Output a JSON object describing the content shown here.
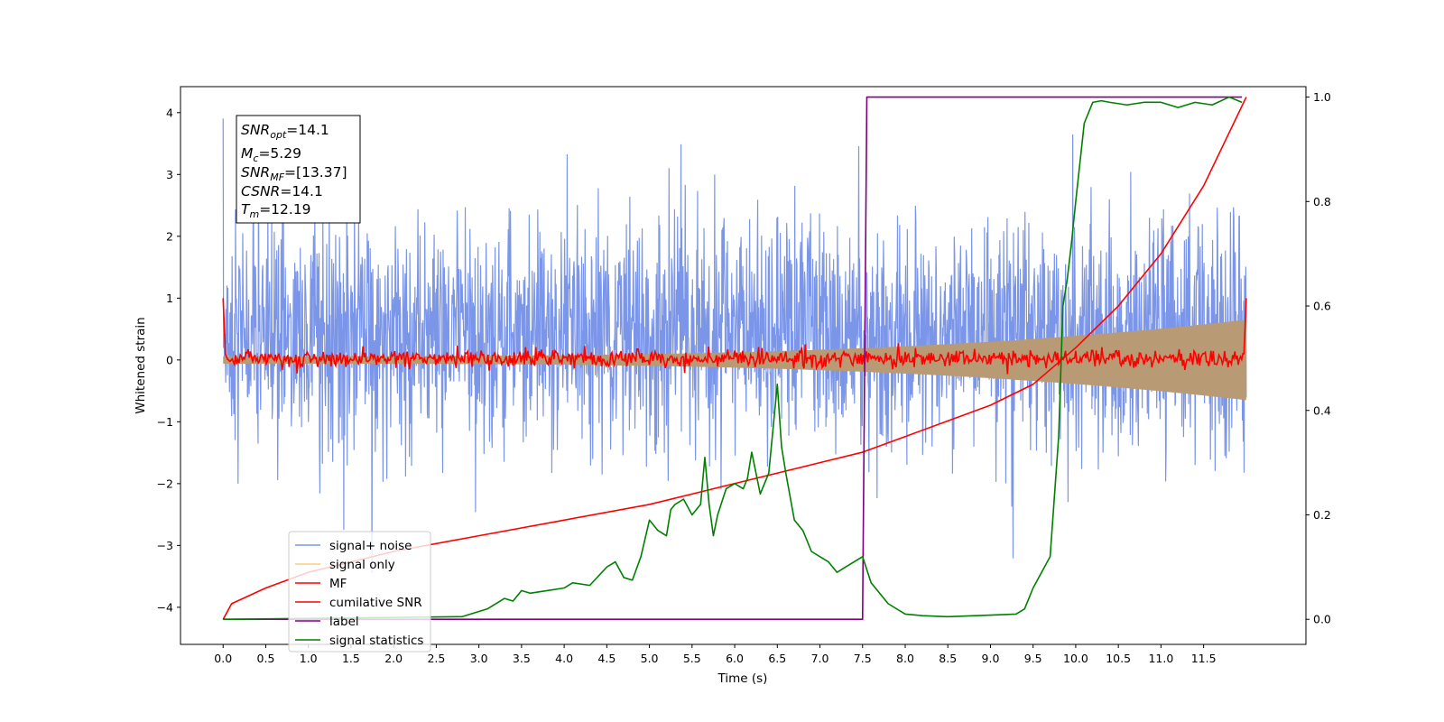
{
  "chart_data": {
    "type": "line",
    "xlabel": "Time (s)",
    "ylabel": "Whitened strain",
    "xlim": [
      -0.5,
      12.7
    ],
    "ylim": [
      -4.6,
      4.42
    ],
    "y2lim": [
      -0.048,
      1.02
    ],
    "x_ticks": [
      "0.0",
      "0.5",
      "1.0",
      "1.5",
      "2.0",
      "2.5",
      "3.0",
      "3.5",
      "4.0",
      "4.5",
      "5.0",
      "5.5",
      "6.0",
      "6.5",
      "7.0",
      "7.5",
      "8.0",
      "8.5",
      "9.0",
      "9.5",
      "10.0",
      "10.5",
      "11.0",
      "11.5"
    ],
    "y_ticks": [
      "4",
      "3",
      "2",
      "1",
      "0",
      "−1",
      "−2",
      "−3",
      "−4"
    ],
    "y2_ticks": [
      "1.0",
      "0.8",
      "0.6",
      "0.4",
      "0.2",
      "0.0"
    ],
    "annotation": {
      "lines": [
        {
          "base": "SNR",
          "sub": "opt",
          "value": "=14.1"
        },
        {
          "base": "M",
          "sub": "c",
          "value": "=5.29"
        },
        {
          "base": "SNR",
          "sub": "MF",
          "value": "=[13.37]"
        },
        {
          "base": "CSNR",
          "sub": "",
          "value": "=14.1"
        },
        {
          "base": "T",
          "sub": "m",
          "value": "=12.19"
        }
      ]
    },
    "legend": {
      "placement": "lower-left",
      "entries": [
        "signal+ noise",
        "signal only",
        "MF",
        "cumilative SNR",
        "label",
        "signal statistics"
      ]
    },
    "series": [
      {
        "name": "signal+ noise",
        "axis": "left",
        "color": "#7b96e8",
        "x_range": [
          0,
          12
        ],
        "mean": 0.4,
        "std": 0.9,
        "min": -4.05,
        "max": 4.02
      },
      {
        "name": "signal only",
        "axis": "left",
        "color": "#b89a74",
        "x_range": [
          0,
          12
        ],
        "amplitude_start": 0.06,
        "amplitude_end": 0.65
      },
      {
        "name": "MF",
        "axis": "left",
        "color": "#ff0000",
        "x_range": [
          0,
          12
        ],
        "mean": 0.02,
        "std": 0.07,
        "start": 1.0,
        "end": 1.0
      },
      {
        "name": "cumilative SNR",
        "axis": "right",
        "color": "#ff0000",
        "x": [
          0,
          0.1,
          0.5,
          1,
          2,
          3,
          4,
          5,
          6,
          7,
          7.5,
          8,
          8.5,
          9,
          9.5,
          10,
          10.5,
          11,
          11.5,
          12
        ],
        "y": [
          0.0,
          0.03,
          0.06,
          0.09,
          0.13,
          0.16,
          0.19,
          0.22,
          0.26,
          0.3,
          0.32,
          0.35,
          0.38,
          0.41,
          0.45,
          0.52,
          0.6,
          0.7,
          0.83,
          1.0
        ]
      },
      {
        "name": "label",
        "axis": "right",
        "color": "#800080",
        "x": [
          0,
          7.5,
          7.55,
          11.95
        ],
        "y": [
          0,
          0,
          1,
          1
        ]
      },
      {
        "name": "signal statistics",
        "axis": "right",
        "color": "#008000",
        "x": [
          0,
          2.8,
          3.1,
          3.3,
          3.4,
          3.5,
          3.6,
          3.8,
          4.0,
          4.1,
          4.3,
          4.5,
          4.6,
          4.7,
          4.8,
          4.9,
          5.0,
          5.1,
          5.2,
          5.25,
          5.3,
          5.4,
          5.5,
          5.6,
          5.65,
          5.7,
          5.75,
          5.8,
          5.9,
          6.0,
          6.1,
          6.15,
          6.2,
          6.3,
          6.4,
          6.5,
          6.55,
          6.6,
          6.7,
          6.8,
          6.9,
          7.0,
          7.1,
          7.2,
          7.3,
          7.4,
          7.5,
          7.6,
          7.7,
          7.8,
          8.0,
          8.2,
          8.5,
          9.0,
          9.3,
          9.4,
          9.5,
          9.6,
          9.7,
          9.8,
          9.85,
          9.9,
          9.95,
          10.0,
          10.1,
          10.2,
          10.3,
          10.4,
          10.6,
          10.8,
          11.0,
          11.2,
          11.4,
          11.6,
          11.8,
          11.95
        ],
        "y": [
          0,
          0.005,
          0.02,
          0.04,
          0.035,
          0.055,
          0.05,
          0.055,
          0.06,
          0.07,
          0.065,
          0.1,
          0.11,
          0.08,
          0.075,
          0.12,
          0.19,
          0.17,
          0.16,
          0.21,
          0.22,
          0.23,
          0.2,
          0.22,
          0.31,
          0.22,
          0.16,
          0.2,
          0.25,
          0.26,
          0.25,
          0.27,
          0.32,
          0.24,
          0.28,
          0.45,
          0.33,
          0.28,
          0.19,
          0.17,
          0.13,
          0.12,
          0.11,
          0.09,
          0.1,
          0.11,
          0.12,
          0.07,
          0.05,
          0.03,
          0.01,
          0.007,
          0.005,
          0.008,
          0.01,
          0.02,
          0.06,
          0.09,
          0.12,
          0.35,
          0.6,
          0.65,
          0.72,
          0.8,
          0.95,
          0.99,
          0.993,
          0.99,
          0.985,
          0.99,
          0.99,
          0.98,
          0.99,
          0.985,
          1.0,
          0.99
        ]
      }
    ]
  }
}
